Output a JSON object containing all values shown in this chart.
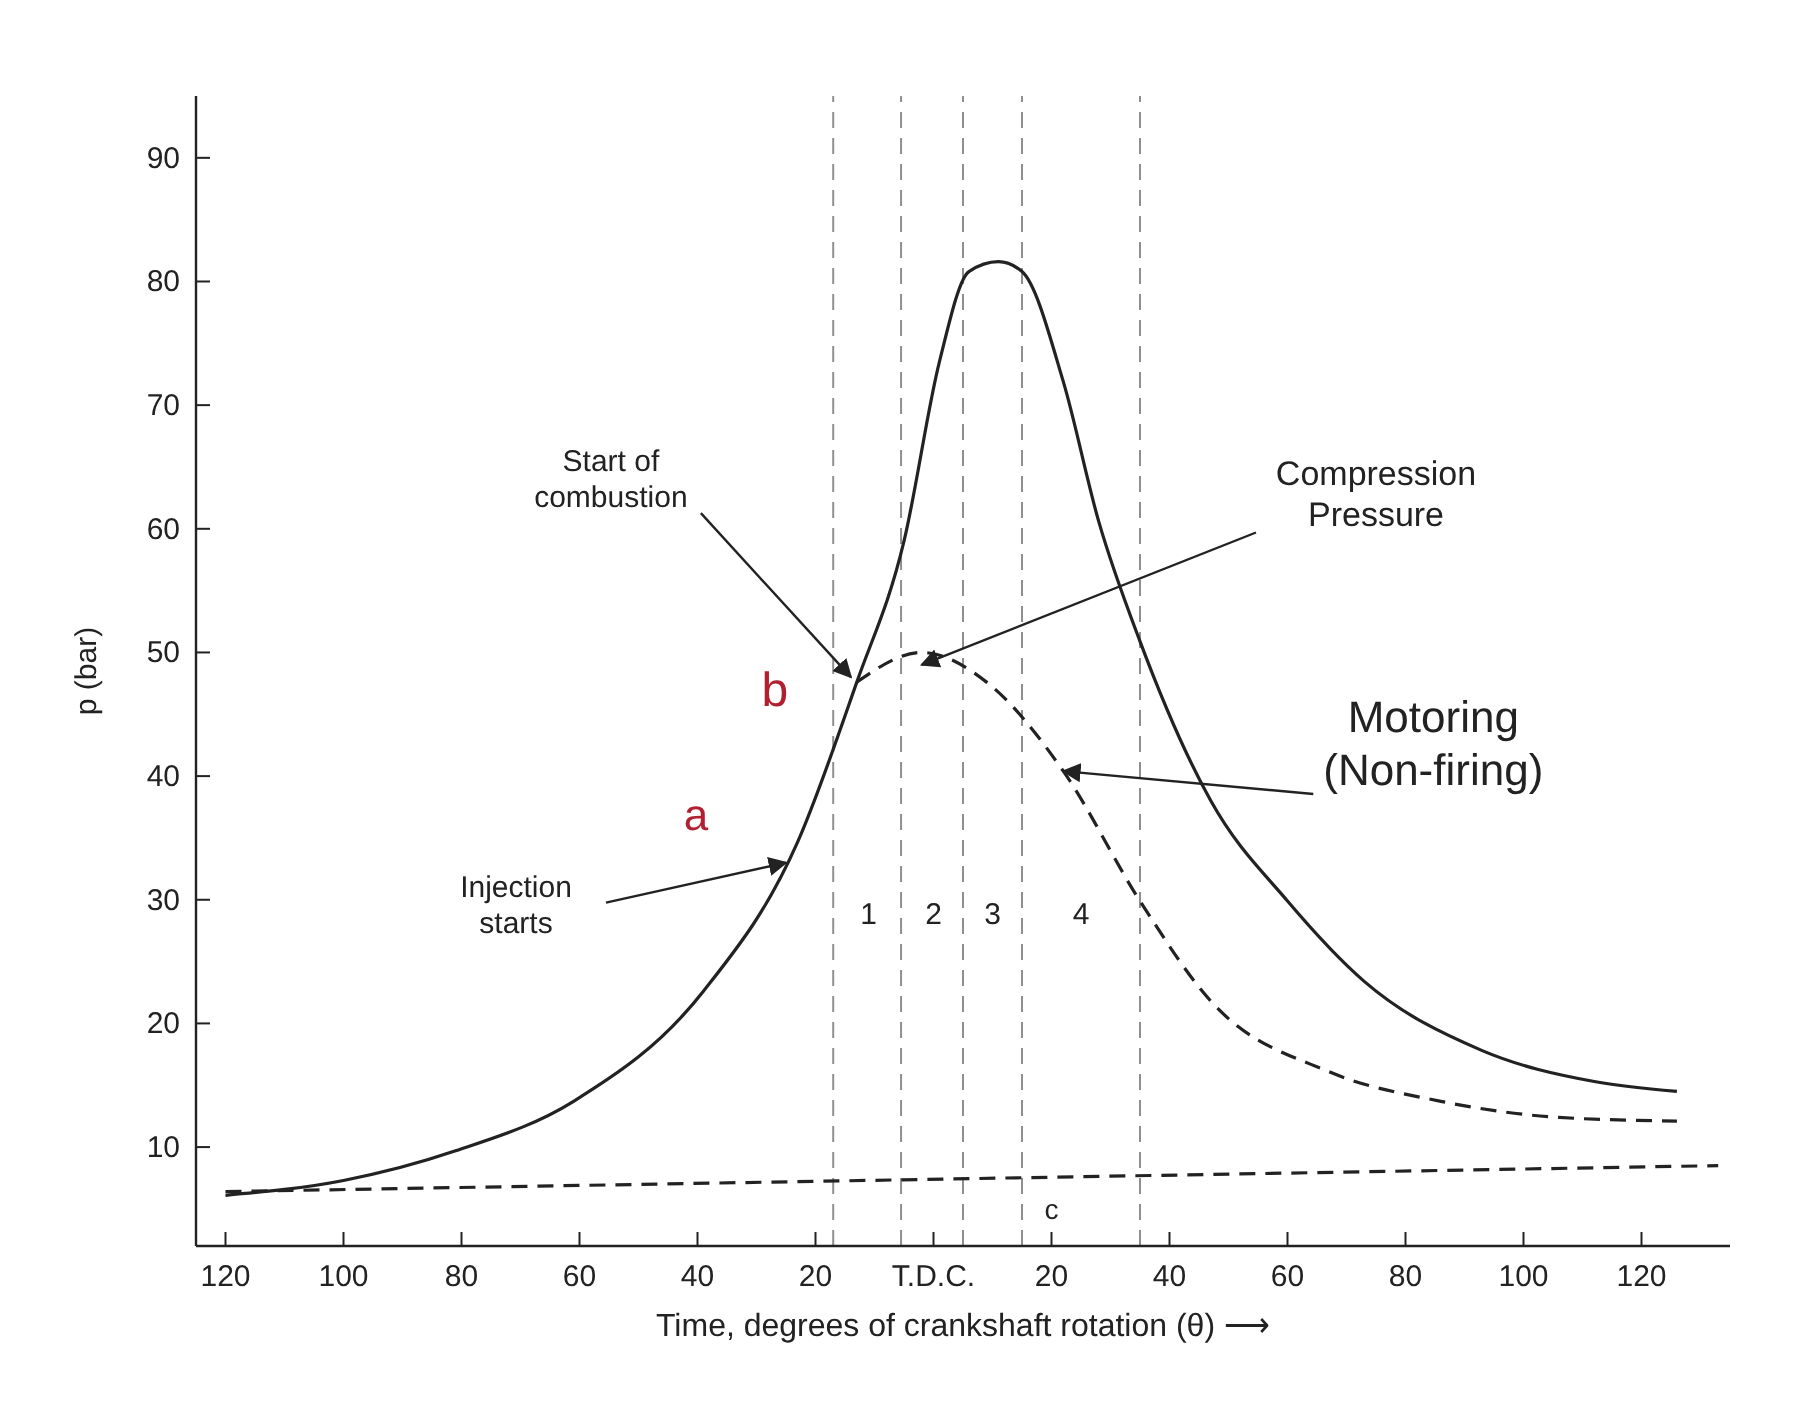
{
  "chart_data": {
    "type": "line",
    "xlabel": "Time, degrees of crankshaft rotation (θ) ⟶",
    "ylabel": "p (bar)",
    "xlim": [
      -125,
      135
    ],
    "ylim": [
      2,
      95
    ],
    "xticks": [
      {
        "value": -120,
        "label": "120"
      },
      {
        "value": -100,
        "label": "100"
      },
      {
        "value": -80,
        "label": "80"
      },
      {
        "value": -60,
        "label": "60"
      },
      {
        "value": -40,
        "label": "40"
      },
      {
        "value": -20,
        "label": "20"
      },
      {
        "value": 0,
        "label": "T.D.C."
      },
      20,
      40,
      60,
      80,
      100,
      120
    ],
    "yticks": [
      10,
      20,
      30,
      40,
      50,
      60,
      70,
      80,
      90
    ],
    "grid": false,
    "series": [
      {
        "color": "#222222",
        "line_style": "solid",
        "x": [
          -120,
          -100,
          -81,
          -61,
          -39,
          -23,
          -13,
          -5,
          1,
          6,
          11,
          15,
          22,
          28,
          35,
          47,
          60,
          73,
          93,
          112,
          126
        ],
        "values": [
          6.1,
          7.3,
          9.7,
          13.7,
          22.6,
          34.7,
          47.6,
          59,
          73.5,
          80.8,
          81.6,
          80.8,
          71.9,
          60.6,
          50.9,
          38,
          29.9,
          23.4,
          17.8,
          15.3,
          14.5
        ]
      },
      {
        "color": "#222222",
        "line_style": "dashed",
        "x": [
          -13,
          -2,
          9,
          22,
          35,
          47,
          67,
          86,
          106,
          126
        ],
        "values": [
          47.6,
          50,
          47.6,
          40.4,
          29.9,
          21.8,
          16.1,
          13.7,
          12.4,
          12.1
        ]
      },
      {
        "color": "#222222",
        "line_style": "dashed",
        "x": [
          -120,
          133
        ],
        "values": [
          6.4,
          8.5
        ]
      }
    ],
    "ref_lines": [
      {
        "axis": "x",
        "value": -17,
        "color": "#222222",
        "line_style": "dashed"
      },
      {
        "axis": "x",
        "value": -5.5,
        "color": "#222222",
        "line_style": "dashed"
      },
      {
        "axis": "x",
        "value": 5,
        "color": "#222222",
        "line_style": "dashed"
      },
      {
        "axis": "x",
        "value": 15,
        "color": "#222222",
        "line_style": "dashed"
      },
      {
        "axis": "x",
        "value": 35,
        "color": "#222222",
        "line_style": "dashed"
      }
    ],
    "annotations": [
      {
        "text": "Start of combustion",
        "x": -14,
        "y": 48
      },
      "Compression Pressure",
      {
        "text": "Injection starts",
        "x": -25,
        "y": 33
      },
      {
        "text": "Motoring (Non-firing)",
        "x": 22,
        "y": 40.4
      },
      {
        "text": "a",
        "x": -25,
        "y": 33
      },
      {
        "text": "b",
        "x": -14,
        "y": 48
      },
      {
        "text": "c",
        "x": 20,
        "y": 8
      },
      "1",
      "2",
      "3",
      "4"
    ]
  }
}
